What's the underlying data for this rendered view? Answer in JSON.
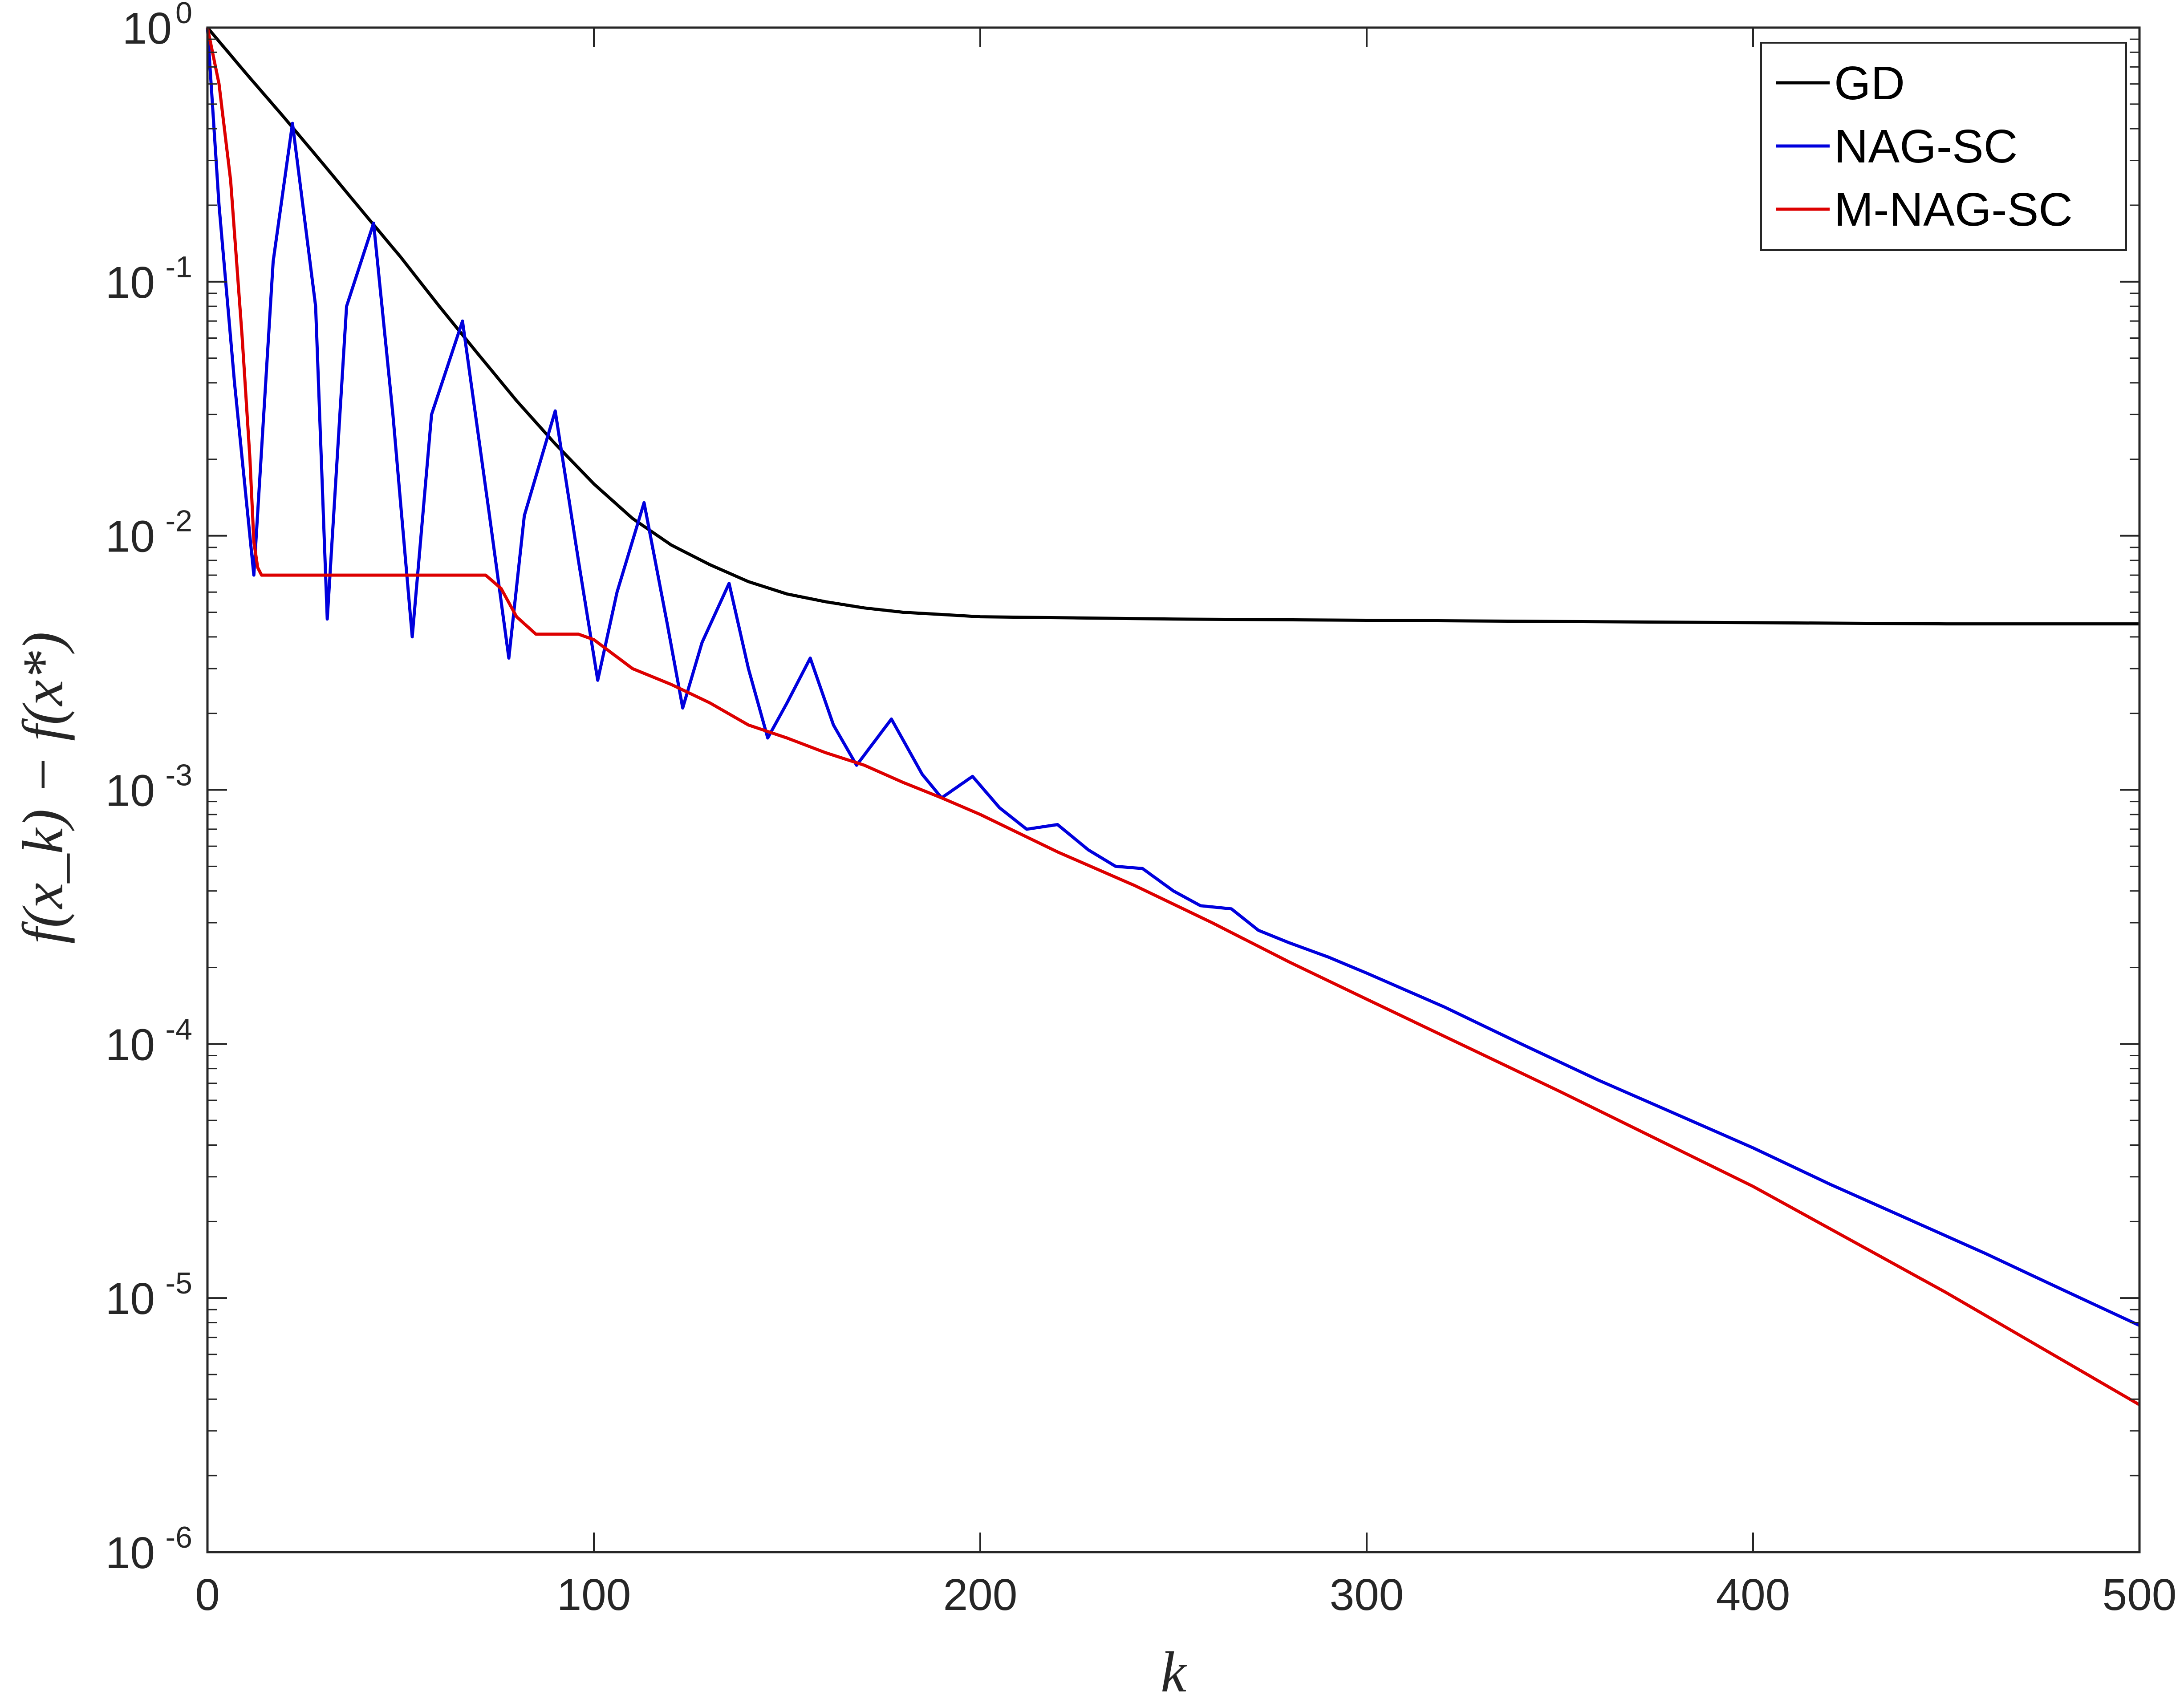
{
  "chart_data": {
    "type": "line",
    "title": "",
    "xlabel": "k",
    "ylabel": "f(x_k) − f(x*)",
    "xlim": [
      0,
      500
    ],
    "ylim": [
      1e-06,
      1
    ],
    "yscale": "log",
    "x_ticks": [
      "0",
      "100",
      "200",
      "300",
      "400",
      "500"
    ],
    "y_ticks": [
      {
        "base": "10",
        "exp": "0"
      },
      {
        "base": "10",
        "exp": "-1"
      },
      {
        "base": "10",
        "exp": "-2"
      },
      {
        "base": "10",
        "exp": "-3"
      },
      {
        "base": "10",
        "exp": "-4"
      },
      {
        "base": "10",
        "exp": "-5"
      },
      {
        "base": "10",
        "exp": "-6"
      }
    ],
    "grid": false,
    "legend": "top-right",
    "series": [
      {
        "name": "GD",
        "color": "#000000",
        "x": [
          0,
          10,
          20,
          30,
          40,
          50,
          60,
          70,
          80,
          90,
          100,
          110,
          120,
          130,
          140,
          150,
          160,
          170,
          180,
          190,
          200,
          225,
          250,
          300,
          350,
          400,
          450,
          500
        ],
        "y": [
          1.0,
          0.66,
          0.44,
          0.29,
          0.19,
          0.125,
          0.08,
          0.052,
          0.034,
          0.023,
          0.016,
          0.0117,
          0.0092,
          0.0077,
          0.0066,
          0.0059,
          0.0055,
          0.0052,
          0.005,
          0.0049,
          0.0048,
          0.00475,
          0.0047,
          0.00465,
          0.0046,
          0.00455,
          0.0045,
          0.0045
        ]
      },
      {
        "name": "NAG-SC",
        "color": "#0000dd",
        "x": [
          0,
          3,
          7,
          12,
          17,
          22,
          28,
          31,
          36,
          43,
          48,
          53,
          58,
          66,
          73,
          78,
          82,
          90,
          96,
          101,
          106,
          113,
          119,
          123,
          128,
          135,
          140,
          145,
          150,
          156,
          162,
          168,
          177,
          185,
          190,
          198,
          205,
          212,
          220,
          228,
          235,
          242,
          250,
          257,
          265,
          272,
          280,
          290,
          300,
          320,
          340,
          360,
          380,
          400,
          420,
          440,
          460,
          480,
          500
        ],
        "y": [
          1.0,
          0.2,
          0.04,
          0.007,
          0.12,
          0.42,
          0.08,
          0.0047,
          0.08,
          0.17,
          0.03,
          0.004,
          0.03,
          0.07,
          0.012,
          0.0033,
          0.012,
          0.031,
          0.008,
          0.0027,
          0.006,
          0.0135,
          0.0045,
          0.0021,
          0.0038,
          0.0065,
          0.003,
          0.0016,
          0.0022,
          0.0033,
          0.0018,
          0.00125,
          0.0019,
          0.00115,
          0.00093,
          0.00113,
          0.00085,
          0.0007,
          0.00073,
          0.00058,
          0.0005,
          0.00049,
          0.0004,
          0.00035,
          0.00034,
          0.00028,
          0.00025,
          0.00022,
          0.00019,
          0.00014,
          0.0001,
          7.2e-05,
          5.3e-05,
          3.9e-05,
          2.8e-05,
          2.05e-05,
          1.5e-05,
          1.08e-05,
          7.8e-06
        ]
      },
      {
        "name": "M-NAG-SC",
        "color": "#dd0000",
        "x": [
          0,
          3,
          6,
          9,
          11,
          12,
          13,
          14,
          16,
          40,
          60,
          72,
          76,
          80,
          85,
          90,
          96,
          100,
          110,
          120,
          130,
          140,
          150,
          160,
          170,
          180,
          190,
          200,
          220,
          240,
          260,
          280,
          300,
          350,
          400,
          450,
          500
        ],
        "y": [
          1.0,
          0.6,
          0.25,
          0.06,
          0.02,
          0.0095,
          0.0075,
          0.007,
          0.007,
          0.007,
          0.007,
          0.007,
          0.0062,
          0.0048,
          0.0041,
          0.0041,
          0.0041,
          0.0039,
          0.003,
          0.0026,
          0.0022,
          0.0018,
          0.0016,
          0.0014,
          0.00125,
          0.00107,
          0.00093,
          0.0008,
          0.00057,
          0.00042,
          0.0003,
          0.00021,
          0.00015,
          6.5e-05,
          2.75e-05,
          1.05e-05,
          3.8e-06
        ]
      }
    ]
  }
}
